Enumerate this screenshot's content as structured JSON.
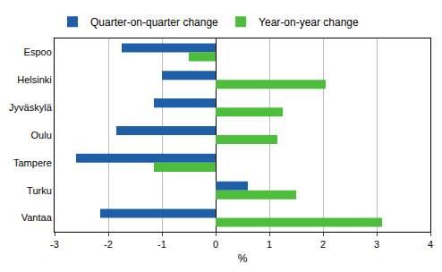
{
  "chart_data": {
    "type": "bar",
    "orientation": "horizontal",
    "categories": [
      "Espoo",
      "Helsinki",
      "Jyväskylä",
      "Oulu",
      "Tampere",
      "Turku",
      "Vantaa"
    ],
    "series": [
      {
        "name": "Quarter-on-quarter change",
        "color": "#1f5fa8",
        "values": [
          -1.75,
          -1.0,
          -1.15,
          -1.85,
          -2.6,
          0.6,
          -2.15
        ]
      },
      {
        "name": "Year-on-year change",
        "color": "#4dbe3c",
        "values": [
          -0.5,
          2.05,
          1.25,
          1.15,
          -1.15,
          1.5,
          3.1
        ]
      }
    ],
    "x_label": "%",
    "xlim": [
      -3,
      4
    ],
    "xticks": [
      -3,
      -2,
      -1,
      0,
      1,
      2,
      3,
      4
    ],
    "grid": true,
    "legend": "top"
  }
}
